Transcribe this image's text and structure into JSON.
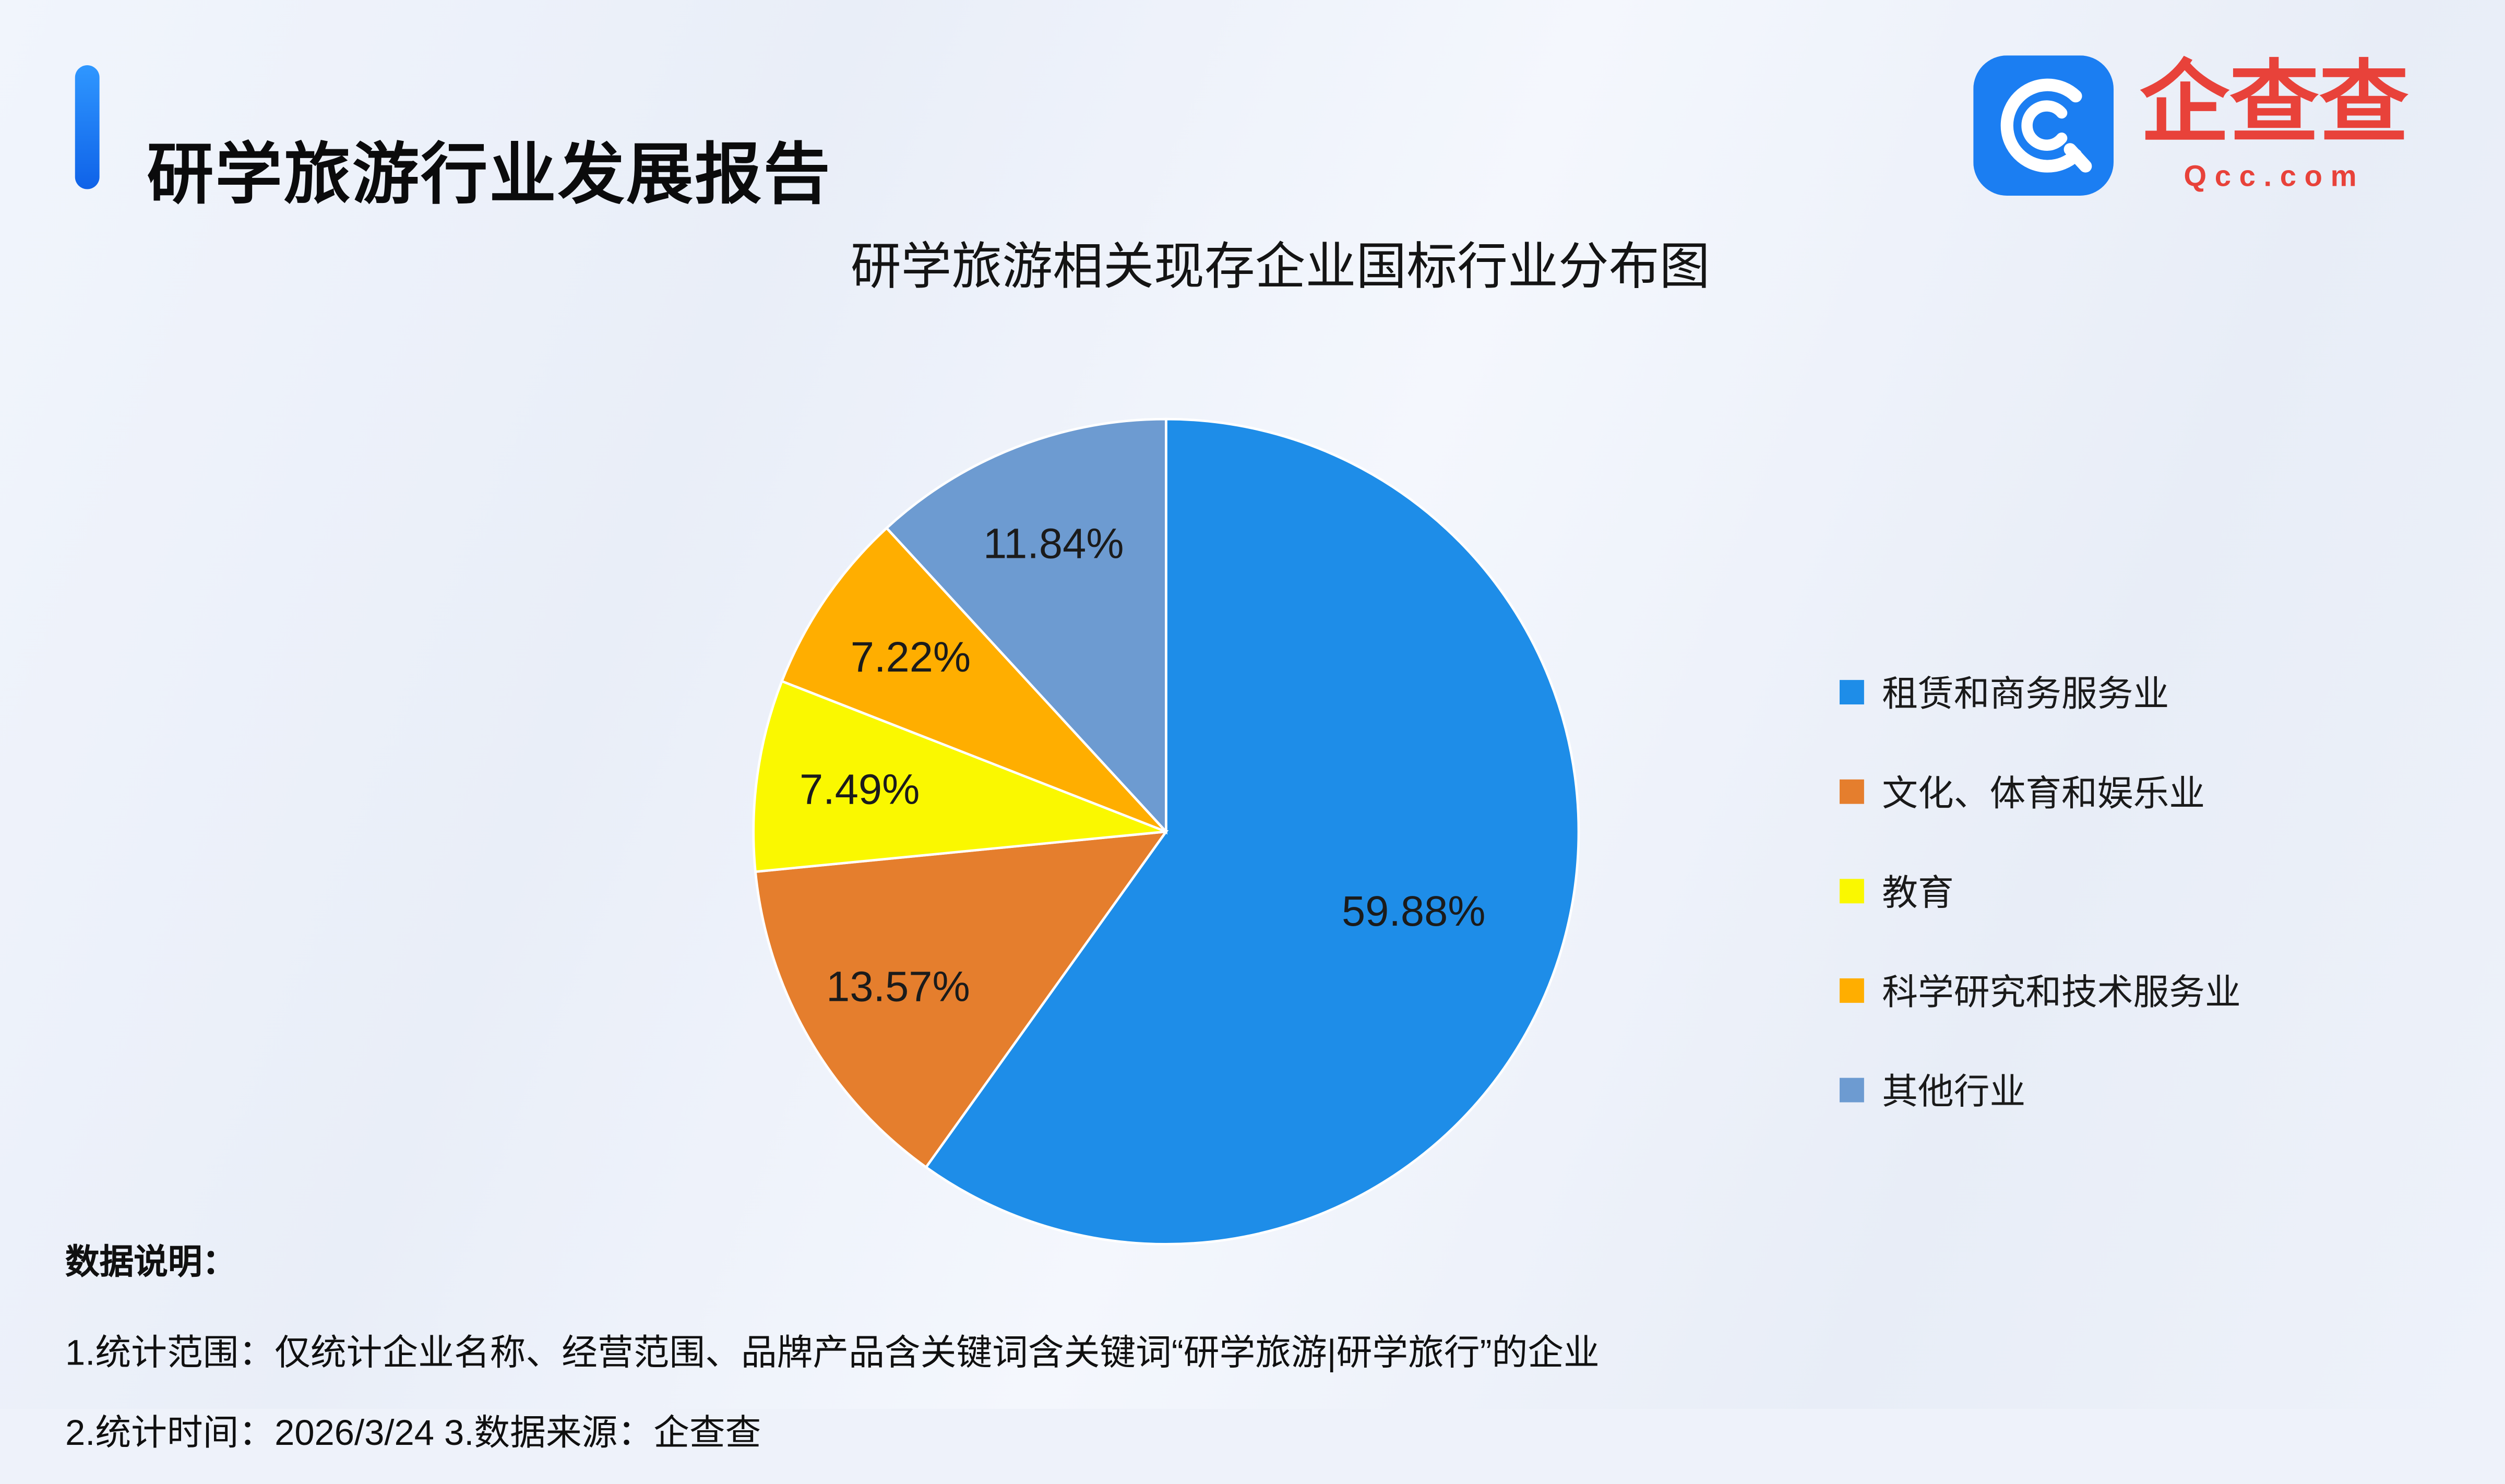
{
  "header": {
    "title": "研学旅游行业发展报告",
    "logo": {
      "brand": "企查查",
      "domain": "Qcc.com",
      "icon": "qcc-magnifier-icon",
      "icon_color": "#1b7ef2",
      "text_color": "#e8423a"
    }
  },
  "chart_data": {
    "type": "pie",
    "title": "研学旅游相关现存企业国标行业分布图",
    "start_angle_deg": 0,
    "direction": "clockwise",
    "legend_position": "right",
    "slices": [
      {
        "label": "租赁和商务服务业",
        "value": 59.88,
        "display": "59.88%",
        "color": "#1e8de8"
      },
      {
        "label": "文化、体育和娱乐业",
        "value": 13.57,
        "display": "13.57%",
        "color": "#e57e2d"
      },
      {
        "label": "教育",
        "value": 7.49,
        "display": "7.49%",
        "color": "#faf800"
      },
      {
        "label": "科学研究和技术服务业",
        "value": 7.22,
        "display": "7.22%",
        "color": "#ffae00"
      },
      {
        "label": "其他行业",
        "value": 11.84,
        "display": "11.84%",
        "color": "#6d9bd1"
      }
    ]
  },
  "footnotes": {
    "heading": "数据说明：",
    "line1": "1.统计范围：仅统计企业名称、经营范围、品牌产品含关键词含关键词“研学旅游|研学旅行”的企业",
    "line2": "2.统计时间：2026/3/24  3.数据来源：企查查"
  }
}
